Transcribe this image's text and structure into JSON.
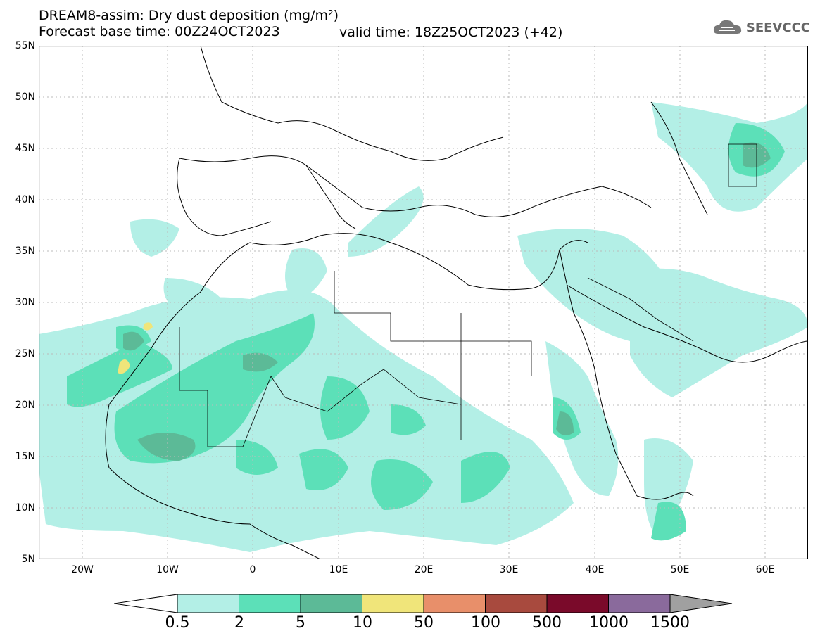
{
  "header": {
    "title": "DREAM8-assim: Dry dust deposition (mg/m²)",
    "base_time": "Forecast base time: 00Z24OCT2023",
    "valid_time": "valid time: 18Z25OCT2023 (+42)"
  },
  "logo": {
    "text": "SEEVCCC",
    "icon": "cloud-icon"
  },
  "axes": {
    "latitudes": [
      "55N",
      "50N",
      "45N",
      "40N",
      "35N",
      "30N",
      "25N",
      "20N",
      "15N",
      "10N",
      "5N"
    ],
    "longitudes": [
      "20W",
      "10W",
      "0",
      "10E",
      "20E",
      "30E",
      "40E",
      "50E",
      "60E"
    ]
  },
  "colorbar": {
    "labels": [
      "0.5",
      "2",
      "5",
      "10",
      "50",
      "100",
      "500",
      "1000",
      "1500"
    ],
    "colors": [
      "#b3efe6",
      "#5ce0b8",
      "#5cba97",
      "#f0e57a",
      "#e88f6a",
      "#a84a3e",
      "#7a0a2a",
      "#8a6a9c",
      "#a0a0a0"
    ]
  },
  "colors": {
    "light": "#b3efe6",
    "mid": "#5ce0b8",
    "dark": "#5cba97",
    "yellow": "#f0e57a"
  }
}
